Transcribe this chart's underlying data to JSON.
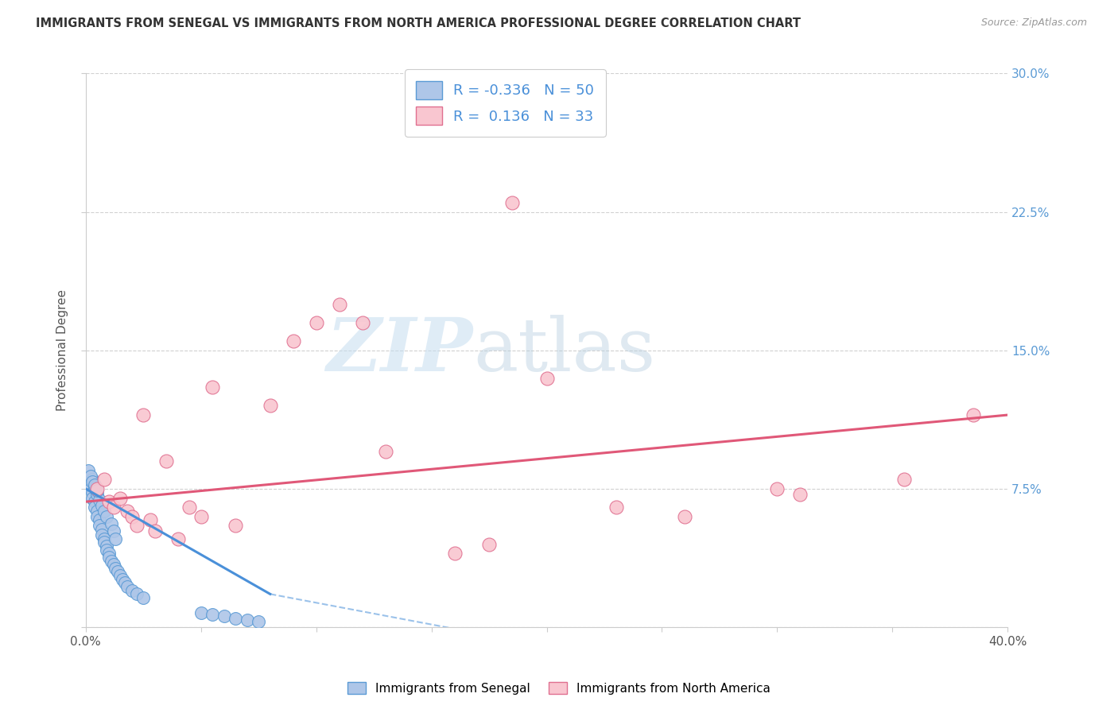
{
  "title": "IMMIGRANTS FROM SENEGAL VS IMMIGRANTS FROM NORTH AMERICA PROFESSIONAL DEGREE CORRELATION CHART",
  "source": "Source: ZipAtlas.com",
  "ylabel": "Professional Degree",
  "xlim": [
    0.0,
    0.4
  ],
  "ylim": [
    0.0,
    0.3
  ],
  "color_blue_fill": "#aec6e8",
  "color_blue_edge": "#5b9bd5",
  "color_blue_line": "#4a90d9",
  "color_pink_fill": "#f9c6d0",
  "color_pink_edge": "#e07090",
  "color_pink_line": "#e05878",
  "R_blue": -0.336,
  "N_blue": 50,
  "R_pink": 0.136,
  "N_pink": 33,
  "senegal_x": [
    0.001,
    0.002,
    0.002,
    0.003,
    0.003,
    0.004,
    0.004,
    0.005,
    0.005,
    0.006,
    0.006,
    0.007,
    0.007,
    0.008,
    0.008,
    0.009,
    0.009,
    0.01,
    0.01,
    0.011,
    0.012,
    0.013,
    0.014,
    0.015,
    0.016,
    0.017,
    0.018,
    0.02,
    0.022,
    0.025,
    0.003,
    0.004,
    0.005,
    0.006,
    0.007,
    0.008,
    0.009,
    0.011,
    0.012,
    0.013,
    0.05,
    0.055,
    0.06,
    0.065,
    0.07,
    0.075,
    0.002,
    0.003,
    0.004,
    0.005
  ],
  "senegal_y": [
    0.085,
    0.078,
    0.075,
    0.073,
    0.07,
    0.068,
    0.065,
    0.063,
    0.06,
    0.058,
    0.055,
    0.053,
    0.05,
    0.048,
    0.046,
    0.044,
    0.042,
    0.04,
    0.038,
    0.036,
    0.034,
    0.032,
    0.03,
    0.028,
    0.026,
    0.024,
    0.022,
    0.02,
    0.018,
    0.016,
    0.08,
    0.076,
    0.072,
    0.069,
    0.066,
    0.063,
    0.06,
    0.056,
    0.052,
    0.048,
    0.008,
    0.007,
    0.006,
    0.005,
    0.004,
    0.003,
    0.082,
    0.079,
    0.077,
    0.074
  ],
  "north_america_x": [
    0.005,
    0.008,
    0.01,
    0.012,
    0.015,
    0.018,
    0.02,
    0.022,
    0.025,
    0.028,
    0.03,
    0.035,
    0.04,
    0.045,
    0.05,
    0.055,
    0.065,
    0.08,
    0.09,
    0.1,
    0.11,
    0.12,
    0.13,
    0.16,
    0.175,
    0.185,
    0.2,
    0.23,
    0.26,
    0.3,
    0.31,
    0.355,
    0.385
  ],
  "north_america_y": [
    0.075,
    0.08,
    0.068,
    0.065,
    0.07,
    0.063,
    0.06,
    0.055,
    0.115,
    0.058,
    0.052,
    0.09,
    0.048,
    0.065,
    0.06,
    0.13,
    0.055,
    0.12,
    0.155,
    0.165,
    0.175,
    0.165,
    0.095,
    0.04,
    0.045,
    0.23,
    0.135,
    0.065,
    0.06,
    0.075,
    0.072,
    0.08,
    0.115
  ],
  "watermark_zip": "ZIP",
  "watermark_atlas": "atlas",
  "background_color": "#ffffff",
  "grid_color": "#cccccc"
}
